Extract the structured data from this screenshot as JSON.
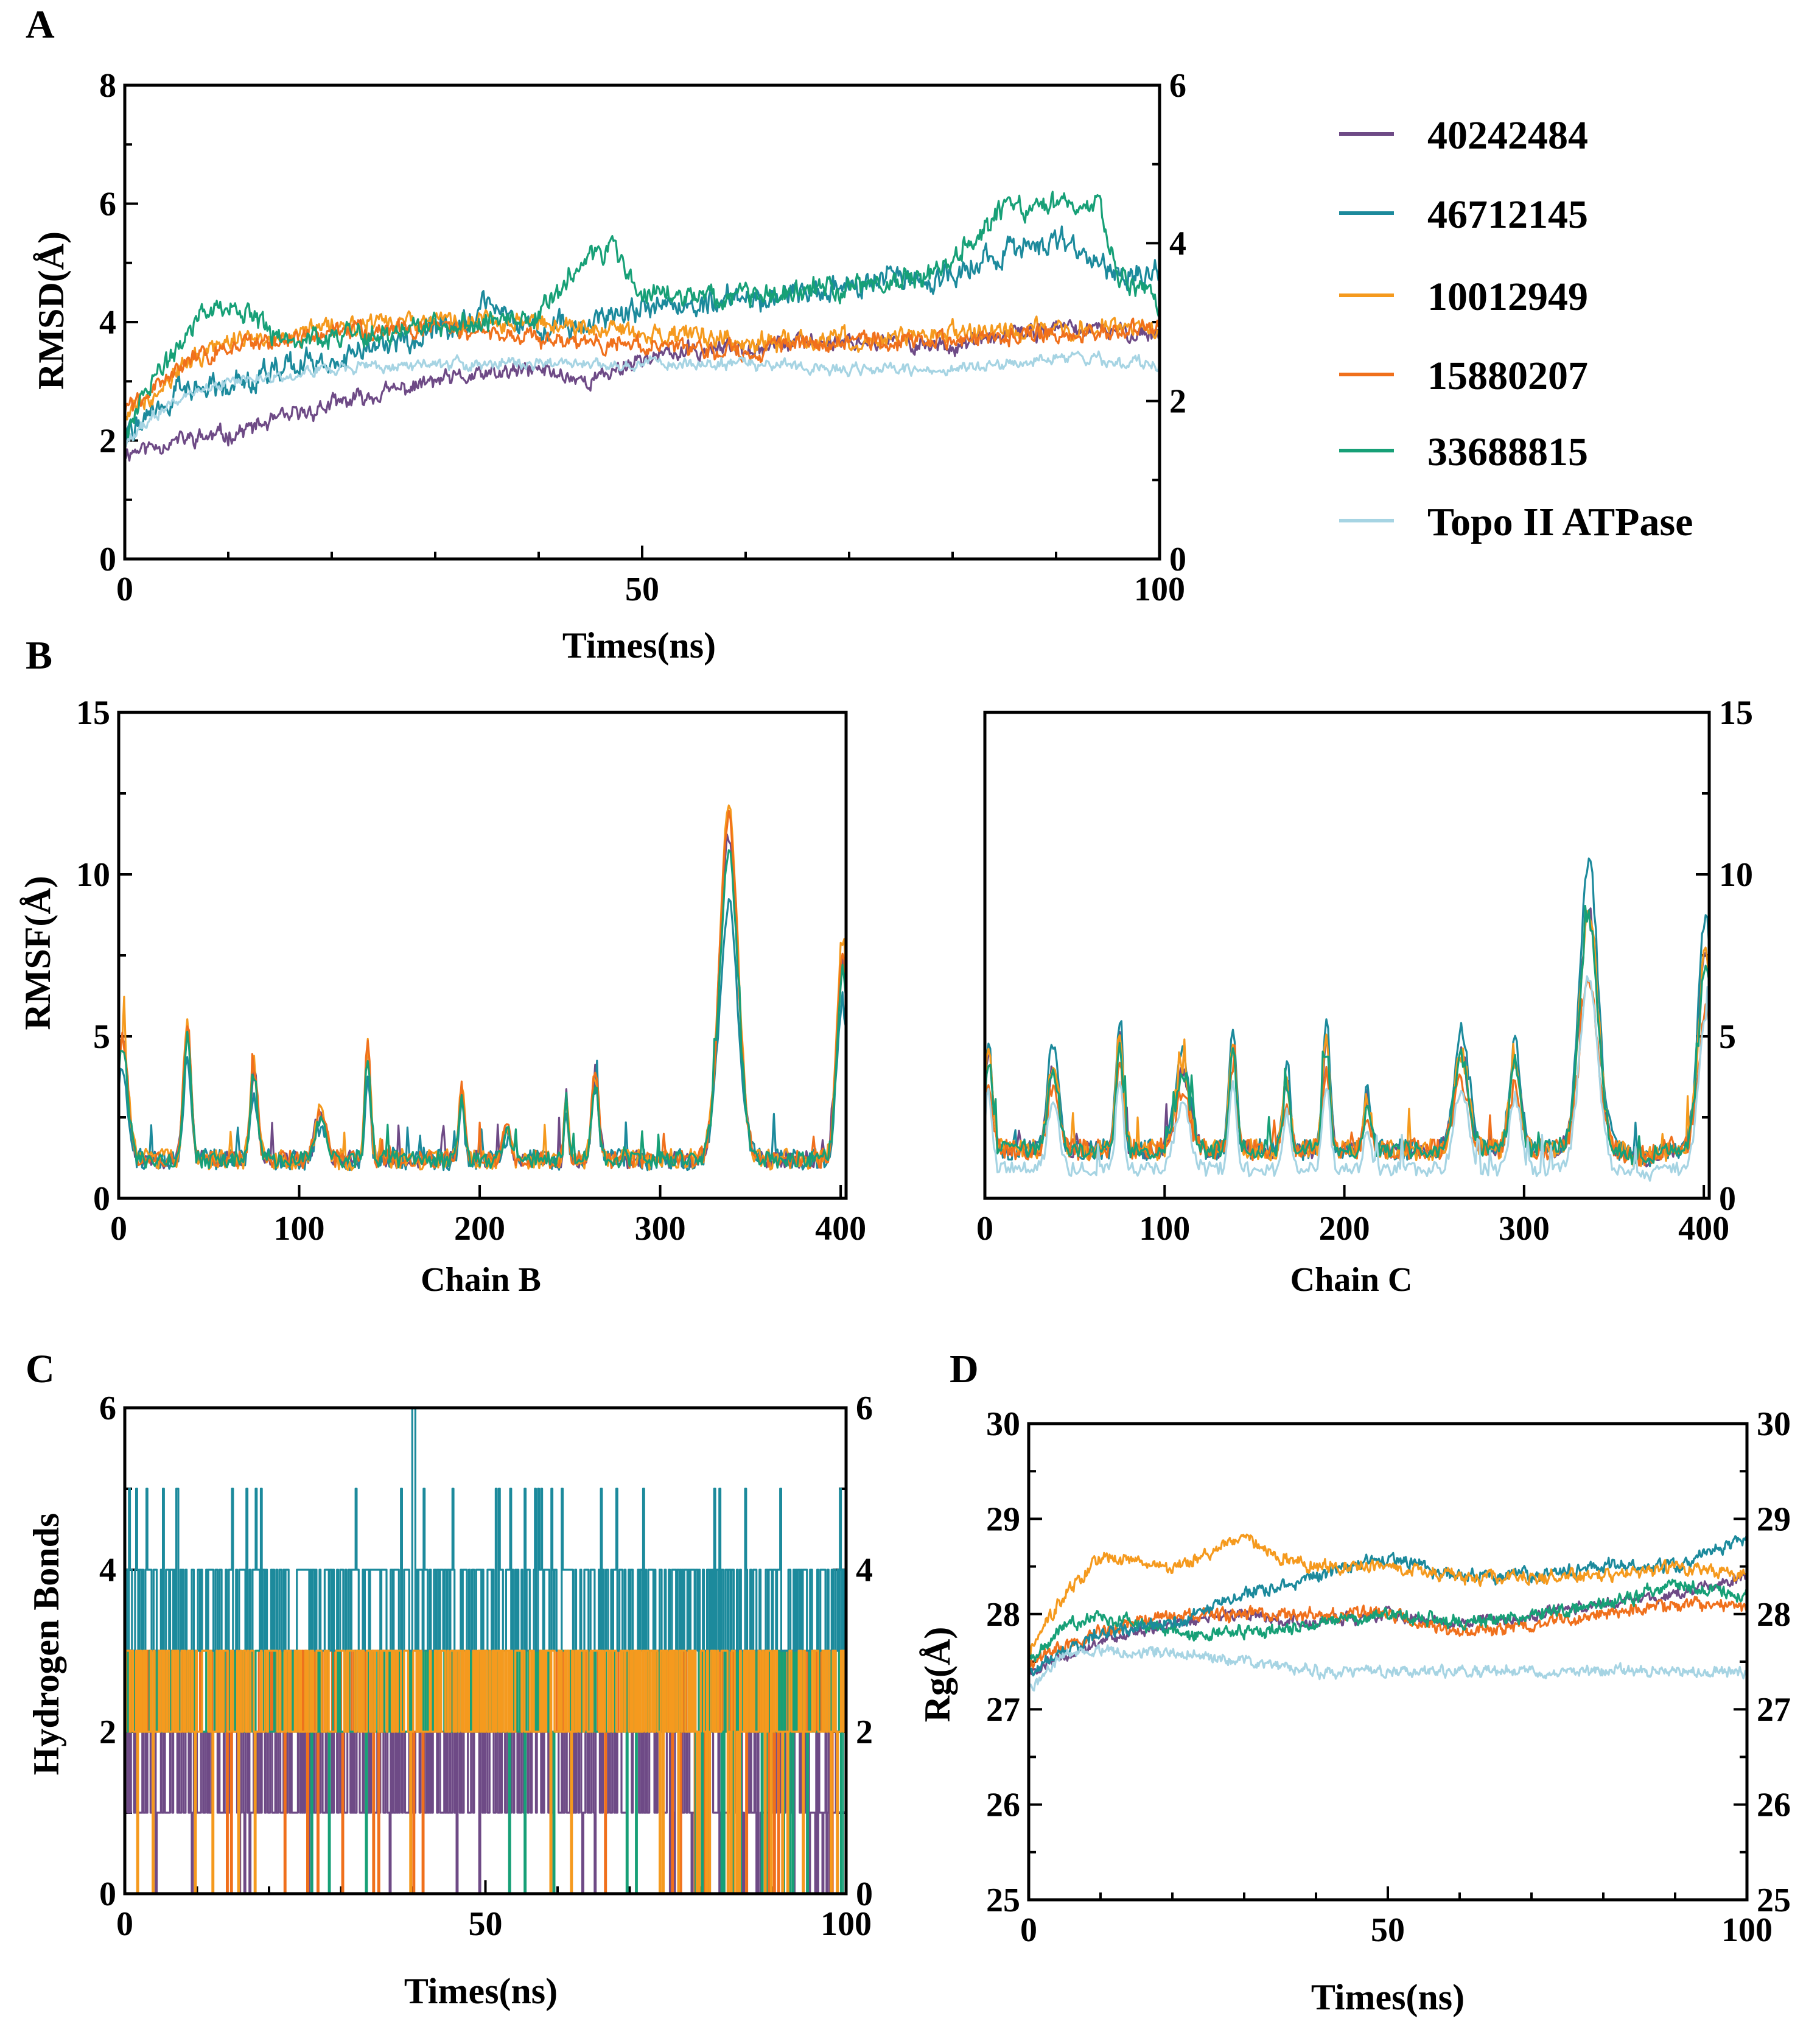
{
  "colors": {
    "40242484": "#6e4a86",
    "46712145": "#1c8a9c",
    "10012949": "#f59a1e",
    "15880207": "#f0701c",
    "33688815": "#17a077",
    "topo": "#a6d4e3"
  },
  "legend": [
    {
      "key": "40242484",
      "label": "40242484"
    },
    {
      "key": "46712145",
      "label": "46712145"
    },
    {
      "key": "10012949",
      "label": "10012949"
    },
    {
      "key": "15880207",
      "label": "15880207"
    },
    {
      "key": "33688815",
      "label": "33688815"
    },
    {
      "key": "topo",
      "label": "Topo II ATPase"
    }
  ],
  "chart_data": [
    {
      "id": "A",
      "panel_label": "A",
      "type": "line",
      "title": "",
      "xlabel": "Times(ns)",
      "ylabel": "RMSD(Å)",
      "xlim": [
        0,
        100
      ],
      "ylim": [
        0,
        8
      ],
      "y2lim": [
        0,
        6
      ],
      "xticks": [
        0,
        50,
        100
      ],
      "yticks": [
        0,
        2,
        4,
        6,
        8
      ],
      "y2ticks": [
        0,
        2,
        4,
        6
      ],
      "series": [
        {
          "key": "40242484",
          "name": "40242484",
          "kf": [
            [
              0,
              1.8
            ],
            [
              5,
              2.0
            ],
            [
              10,
              2.1
            ],
            [
              20,
              2.6
            ],
            [
              30,
              3.0
            ],
            [
              40,
              3.2
            ],
            [
              45,
              3.0
            ],
            [
              50,
              3.4
            ],
            [
              60,
              3.6
            ],
            [
              70,
              3.7
            ],
            [
              80,
              3.6
            ],
            [
              90,
              3.9
            ],
            [
              100,
              3.8
            ]
          ],
          "noise": 0.15,
          "seed": 11
        },
        {
          "key": "46712145",
          "name": "46712145",
          "kf": [
            [
              0,
              2.1
            ],
            [
              5,
              2.8
            ],
            [
              10,
              3.0
            ],
            [
              20,
              3.4
            ],
            [
              30,
              3.8
            ],
            [
              35,
              4.2
            ],
            [
              40,
              3.9
            ],
            [
              50,
              4.2
            ],
            [
              60,
              4.4
            ],
            [
              70,
              4.6
            ],
            [
              80,
              4.8
            ],
            [
              85,
              5.2
            ],
            [
              90,
              5.4
            ],
            [
              95,
              4.9
            ],
            [
              100,
              4.8
            ]
          ],
          "noise": 0.22,
          "seed": 22
        },
        {
          "key": "10012949",
          "name": "10012949",
          "kf": [
            [
              0,
              2.4
            ],
            [
              5,
              3.2
            ],
            [
              10,
              3.7
            ],
            [
              20,
              3.9
            ],
            [
              30,
              4.0
            ],
            [
              40,
              4.0
            ],
            [
              50,
              3.8
            ],
            [
              60,
              3.7
            ],
            [
              70,
              3.7
            ],
            [
              80,
              3.8
            ],
            [
              90,
              3.9
            ],
            [
              100,
              3.9
            ]
          ],
          "noise": 0.17,
          "seed": 33
        },
        {
          "key": "15880207",
          "name": "15880207",
          "kf": [
            [
              0,
              2.5
            ],
            [
              5,
              3.2
            ],
            [
              10,
              3.6
            ],
            [
              20,
              3.8
            ],
            [
              30,
              3.9
            ],
            [
              40,
              3.7
            ],
            [
              50,
              3.6
            ],
            [
              60,
              3.5
            ],
            [
              70,
              3.7
            ],
            [
              80,
              3.7
            ],
            [
              90,
              3.8
            ],
            [
              100,
              3.9
            ]
          ],
          "noise": 0.16,
          "seed": 44
        },
        {
          "key": "33688815",
          "name": "33688815",
          "kf": [
            [
              0,
              2.2
            ],
            [
              5,
              3.6
            ],
            [
              8,
              4.3
            ],
            [
              12,
              4.1
            ],
            [
              15,
              3.7
            ],
            [
              20,
              3.8
            ],
            [
              30,
              3.9
            ],
            [
              40,
              4.1
            ],
            [
              44,
              5.0
            ],
            [
              47,
              5.3
            ],
            [
              50,
              4.5
            ],
            [
              60,
              4.4
            ],
            [
              70,
              4.6
            ],
            [
              78,
              4.8
            ],
            [
              82,
              5.4
            ],
            [
              85,
              5.9
            ],
            [
              90,
              6.0
            ],
            [
              94,
              6.0
            ],
            [
              96,
              4.8
            ],
            [
              100,
              4.2
            ]
          ],
          "noise": 0.2,
          "seed": 55
        },
        {
          "key": "topo",
          "name": "Topo II ATPase",
          "kf": [
            [
              0,
              2.0
            ],
            [
              5,
              2.7
            ],
            [
              10,
              3.0
            ],
            [
              20,
              3.2
            ],
            [
              30,
              3.3
            ],
            [
              40,
              3.3
            ],
            [
              50,
              3.3
            ],
            [
              60,
              3.3
            ],
            [
              70,
              3.2
            ],
            [
              80,
              3.2
            ],
            [
              90,
              3.4
            ],
            [
              100,
              3.3
            ]
          ],
          "noise": 0.1,
          "seed": 66
        }
      ]
    },
    {
      "id": "B1",
      "panel_label": "B",
      "type": "line",
      "title": "",
      "xlabel": "Chain B",
      "ylabel": "RMSF(Å)",
      "xlim": [
        0,
        403
      ],
      "ylim": [
        0,
        15
      ],
      "xticks": [
        0,
        100,
        200,
        300,
        400
      ],
      "yticks": [
        0,
        5,
        10,
        15
      ],
      "baseline": 1.2,
      "peaks": [
        [
          2,
          3.8,
          3
        ],
        [
          38,
          4.2,
          2
        ],
        [
          75,
          2.8,
          2
        ],
        [
          112,
          1.4,
          3
        ],
        [
          138,
          3.6,
          1.5
        ],
        [
          190,
          2.4,
          1.5
        ],
        [
          215,
          1.0,
          2
        ],
        [
          248,
          2.0,
          1
        ],
        [
          264,
          2.6,
          2
        ],
        [
          338,
          10.5,
          5
        ],
        [
          401,
          6.5,
          3
        ]
      ],
      "series": [
        {
          "key": "40242484",
          "name": "40242484",
          "scale": 0.95,
          "noise": 0.25,
          "seed": 101
        },
        {
          "key": "46712145",
          "name": "46712145",
          "scale": 0.75,
          "noise": 0.3,
          "seed": 102
        },
        {
          "key": "10012949",
          "name": "10012949",
          "scale": 1.05,
          "noise": 0.3,
          "seed": 103
        },
        {
          "key": "15880207",
          "name": "15880207",
          "scale": 1.0,
          "noise": 0.25,
          "seed": 104
        },
        {
          "key": "33688815",
          "name": "33688815",
          "scale": 0.9,
          "noise": 0.25,
          "seed": 105
        }
      ]
    },
    {
      "id": "B2",
      "panel_label": "",
      "type": "line",
      "title": "",
      "xlabel": "Chain C",
      "ylabel": "",
      "xlim": [
        0,
        403
      ],
      "ylim": [
        0,
        15
      ],
      "y2lim": [
        0,
        15
      ],
      "xticks": [
        0,
        100,
        200,
        300,
        400
      ],
      "y2ticks": [
        0,
        5,
        10,
        15
      ],
      "baseline": 1.5,
      "peaks": [
        [
          2,
          3.0,
          2
        ],
        [
          38,
          2.6,
          3
        ],
        [
          75,
          3.5,
          2
        ],
        [
          110,
          2.5,
          4
        ],
        [
          138,
          3.2,
          2
        ],
        [
          168,
          2.2,
          2
        ],
        [
          190,
          3.3,
          2
        ],
        [
          213,
          1.6,
          2
        ],
        [
          265,
          3.0,
          4
        ],
        [
          295,
          2.8,
          3
        ],
        [
          336,
          7.5,
          5
        ],
        [
          365,
          -0.3,
          6
        ],
        [
          401,
          6.0,
          4
        ]
      ],
      "series": [
        {
          "key": "40242484",
          "name": "40242484",
          "scale": 1.0,
          "noise": 0.25,
          "seed": 201
        },
        {
          "key": "46712145",
          "name": "46712145",
          "scale": 1.2,
          "noise": 0.3,
          "seed": 202
        },
        {
          "key": "10012949",
          "name": "10012949",
          "scale": 1.0,
          "noise": 0.3,
          "seed": 203
        },
        {
          "key": "15880207",
          "name": "15880207",
          "scale": 0.7,
          "noise": 0.3,
          "seed": 204
        },
        {
          "key": "33688815",
          "name": "33688815",
          "scale": 0.95,
          "noise": 0.25,
          "seed": 205
        },
        {
          "key": "topo",
          "name": "Topo II ATPase",
          "scale": 0.8,
          "noise": 0.2,
          "seed": 206,
          "offset": -0.6
        }
      ]
    },
    {
      "id": "C",
      "panel_label": "C",
      "type": "line",
      "title": "",
      "xlabel": "Times(ns)",
      "ylabel": "Hydrogen Bonds",
      "xlim": [
        0,
        100
      ],
      "ylim": [
        0,
        6
      ],
      "y2lim": [
        0,
        6
      ],
      "xticks": [
        0,
        50,
        100
      ],
      "yticks": [
        0,
        2,
        4,
        6
      ],
      "y2ticks": [
        0,
        2,
        4,
        6
      ],
      "series": [
        {
          "key": "40242484",
          "name": "40242484",
          "levels": [
            1,
            2
          ],
          "zero_rate": 0.03,
          "seed": 301
        },
        {
          "key": "15880207",
          "name": "15880207",
          "levels": [
            2,
            3
          ],
          "zero_rate": 0.02,
          "seed": 302
        },
        {
          "key": "33688815",
          "name": "33688815",
          "levels": [
            2,
            3
          ],
          "zero_rate": 0.015,
          "seed": 303
        },
        {
          "key": "46712145",
          "name": "46712145",
          "levels": [
            3,
            4
          ],
          "peak": 5,
          "peak_rate": 0.05,
          "seed": 304
        },
        {
          "key": "10012949",
          "name": "10012949",
          "levels": [
            2,
            3
          ],
          "zero_rate": 0.02,
          "seed": 305
        }
      ]
    },
    {
      "id": "D",
      "panel_label": "D",
      "type": "line",
      "title": "",
      "xlabel": "Times(ns)",
      "ylabel": "Rg(Å)",
      "xlim": [
        0,
        100
      ],
      "ylim": [
        25,
        30
      ],
      "y2lim": [
        25,
        30
      ],
      "xticks": [
        0,
        50,
        100
      ],
      "yticks": [
        25,
        26,
        27,
        28,
        29,
        30
      ],
      "y2ticks": [
        25,
        26,
        27,
        28,
        29,
        30
      ],
      "series": [
        {
          "key": "40242484",
          "name": "40242484",
          "kf": [
            [
              0,
              27.4
            ],
            [
              10,
              27.7
            ],
            [
              20,
              27.9
            ],
            [
              30,
              28.0
            ],
            [
              40,
              27.9
            ],
            [
              50,
              28.0
            ],
            [
              60,
              27.9
            ],
            [
              70,
              28.0
            ],
            [
              80,
              28.1
            ],
            [
              90,
              28.2
            ],
            [
              100,
              28.4
            ]
          ],
          "noise": 0.06,
          "seed": 401
        },
        {
          "key": "15880207",
          "name": "15880207",
          "kf": [
            [
              0,
              27.5
            ],
            [
              10,
              27.8
            ],
            [
              20,
              28.0
            ],
            [
              30,
              28.0
            ],
            [
              40,
              28.0
            ],
            [
              50,
              28.0
            ],
            [
              60,
              27.8
            ],
            [
              70,
              27.9
            ],
            [
              80,
              28.0
            ],
            [
              90,
              28.1
            ],
            [
              100,
              28.1
            ]
          ],
          "noise": 0.07,
          "seed": 402
        },
        {
          "key": "33688815",
          "name": "33688815",
          "kf": [
            [
              0,
              27.5
            ],
            [
              5,
              27.9
            ],
            [
              10,
              28.0
            ],
            [
              20,
              27.8
            ],
            [
              30,
              27.8
            ],
            [
              40,
              27.9
            ],
            [
              50,
              28.0
            ],
            [
              60,
              27.9
            ],
            [
              70,
              28.0
            ],
            [
              80,
              28.1
            ],
            [
              90,
              28.3
            ],
            [
              100,
              28.2
            ]
          ],
          "noise": 0.07,
          "seed": 403
        },
        {
          "key": "46712145",
          "name": "46712145",
          "kf": [
            [
              0,
              27.4
            ],
            [
              10,
              27.8
            ],
            [
              20,
              27.9
            ],
            [
              30,
              28.2
            ],
            [
              40,
              28.4
            ],
            [
              50,
              28.6
            ],
            [
              60,
              28.4
            ],
            [
              70,
              28.4
            ],
            [
              80,
              28.5
            ],
            [
              90,
              28.5
            ],
            [
              100,
              28.8
            ]
          ],
          "noise": 0.07,
          "seed": 404
        },
        {
          "key": "10012949",
          "name": "10012949",
          "kf": [
            [
              0,
              27.6
            ],
            [
              5,
              28.2
            ],
            [
              10,
              28.6
            ],
            [
              20,
              28.5
            ],
            [
              30,
              28.8
            ],
            [
              35,
              28.6
            ],
            [
              40,
              28.5
            ],
            [
              50,
              28.5
            ],
            [
              60,
              28.4
            ],
            [
              70,
              28.4
            ],
            [
              80,
              28.4
            ],
            [
              90,
              28.5
            ],
            [
              100,
              28.4
            ]
          ],
          "noise": 0.07,
          "seed": 405
        },
        {
          "key": "topo",
          "name": "Topo II ATPase",
          "kf": [
            [
              0,
              27.2
            ],
            [
              5,
              27.6
            ],
            [
              10,
              27.6
            ],
            [
              20,
              27.6
            ],
            [
              30,
              27.5
            ],
            [
              40,
              27.4
            ],
            [
              50,
              27.4
            ],
            [
              60,
              27.4
            ],
            [
              70,
              27.4
            ],
            [
              80,
              27.4
            ],
            [
              90,
              27.4
            ],
            [
              100,
              27.4
            ]
          ],
          "noise": 0.06,
          "seed": 406
        }
      ]
    }
  ]
}
